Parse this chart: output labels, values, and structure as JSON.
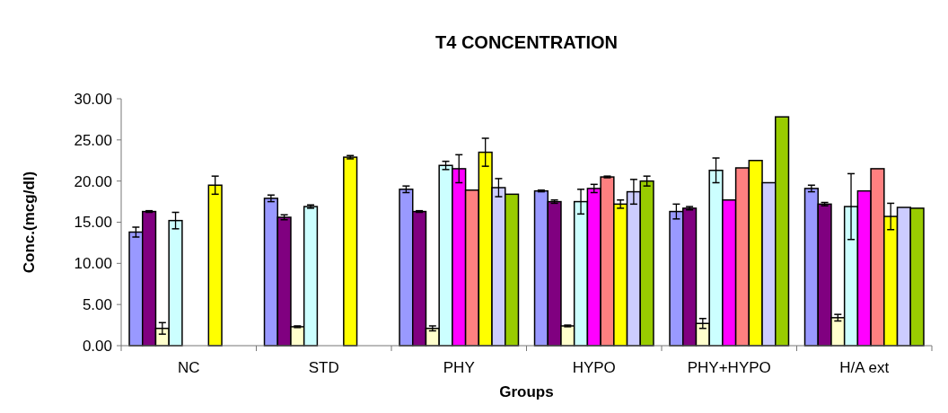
{
  "chart_data": {
    "type": "bar",
    "title": "T4 CONCENTRATION",
    "xlabel": "Groups",
    "ylabel": "Conc.(mcg/dl)",
    "categories": [
      "NC",
      "STD",
      "PHY",
      "HYPO",
      "PHY+HYPO",
      "H/A ext"
    ],
    "ylim": [
      0,
      30
    ],
    "yticks": [
      {
        "value": 0,
        "label": "0.00"
      },
      {
        "value": 5,
        "label": "5.00"
      },
      {
        "value": 10,
        "label": "10.00"
      },
      {
        "value": 15,
        "label": "15.00"
      },
      {
        "value": 20,
        "label": "20.00"
      },
      {
        "value": 25,
        "label": "25.00"
      },
      {
        "value": 30,
        "label": "30.00"
      }
    ],
    "series": [
      {
        "color": "#9999ff",
        "values": [
          13.8,
          17.9,
          19.0,
          18.8,
          16.3,
          19.1
        ],
        "errors": [
          0.6,
          0.4,
          0.4,
          0.1,
          0.9,
          0.4
        ]
      },
      {
        "color": "#800080",
        "values": [
          16.3,
          15.6,
          16.3,
          17.5,
          16.7,
          17.2
        ],
        "errors": [
          0.1,
          0.3,
          0.1,
          0.2,
          0.2,
          0.2
        ]
      },
      {
        "color": "#ffffcc",
        "values": [
          2.1,
          2.3,
          2.1,
          2.4,
          2.7,
          3.4
        ],
        "errors": [
          0.7,
          0.1,
          0.3,
          0.1,
          0.6,
          0.4
        ]
      },
      {
        "color": "#ccffff",
        "values": [
          15.2,
          16.9,
          21.9,
          17.5,
          21.3,
          16.9
        ],
        "errors": [
          1.0,
          0.2,
          0.5,
          1.5,
          1.5,
          4.0
        ]
      },
      {
        "color": "#ff00ff",
        "values": [
          null,
          null,
          21.5,
          19.1,
          17.7,
          18.8
        ],
        "errors": [
          null,
          null,
          1.7,
          0.5,
          null,
          null
        ]
      },
      {
        "color": "#ff8080",
        "values": [
          null,
          null,
          18.9,
          20.5,
          21.6,
          21.5
        ],
        "errors": [
          null,
          null,
          null,
          0.1,
          null,
          null
        ]
      },
      {
        "color": "#ffff00",
        "values": [
          19.5,
          22.9,
          23.5,
          17.2,
          22.5,
          15.7
        ],
        "errors": [
          1.1,
          0.2,
          1.7,
          0.5,
          null,
          1.6
        ]
      },
      {
        "color": "#ccccff",
        "values": [
          null,
          null,
          19.2,
          18.7,
          19.8,
          16.8
        ],
        "errors": [
          null,
          null,
          1.1,
          1.5,
          null,
          null
        ]
      },
      {
        "color": "#99cc00",
        "values": [
          null,
          null,
          18.4,
          20.0,
          27.8,
          16.7
        ],
        "errors": [
          null,
          null,
          null,
          0.6,
          null,
          null
        ]
      }
    ]
  }
}
